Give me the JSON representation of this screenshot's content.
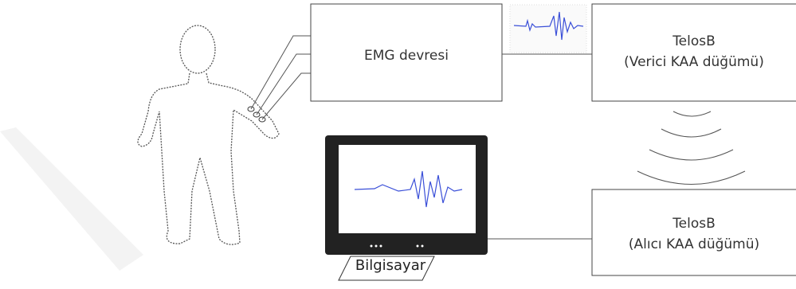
{
  "nodes": [
    {
      "label": "EMG devresi"
    },
    {
      "title": "TelosB",
      "subtitle": "(Verici KAA düğümü)"
    },
    {
      "title": "TelosB",
      "subtitle": "(Alıcı KAA düğümü)"
    },
    {
      "label": "Bilgisayar"
    }
  ]
}
